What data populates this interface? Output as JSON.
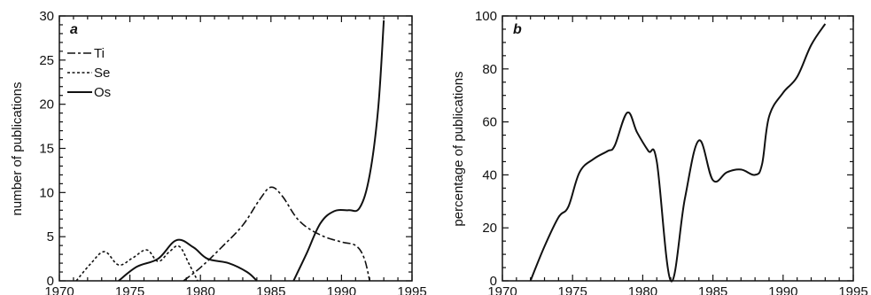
{
  "chart_data": [
    {
      "panel": "a",
      "type": "line",
      "xlabel": "",
      "ylabel": "number of publications",
      "xlim": [
        1970,
        1995
      ],
      "ylim": [
        0,
        30
      ],
      "xticks": [
        1970,
        1975,
        1980,
        1985,
        1990,
        1995
      ],
      "yticks": [
        0,
        5,
        10,
        15,
        20,
        25,
        30
      ],
      "grid": false,
      "legend_position": "top-left",
      "series": [
        {
          "name": "Ti",
          "style": "long-dash",
          "color": "#111111",
          "x": [
            1978.8,
            1980,
            1981.5,
            1983,
            1984.2,
            1985,
            1985.8,
            1987,
            1988.5,
            1990,
            1991,
            1991.6,
            1992
          ],
          "y": [
            0,
            1.5,
            3.8,
            6.3,
            9.2,
            10.6,
            9.6,
            6.8,
            5.2,
            4.4,
            4.0,
            2.6,
            0
          ]
        },
        {
          "name": "Se",
          "style": "short-dash",
          "color": "#111111",
          "x": [
            1971.2,
            1972.2,
            1973.2,
            1974.2,
            1975.2,
            1976.2,
            1977,
            1977.8,
            1978.5,
            1979.2,
            1979.8
          ],
          "y": [
            0,
            1.9,
            3.3,
            1.8,
            2.6,
            3.5,
            2.2,
            3.3,
            3.9,
            1.9,
            0
          ]
        },
        {
          "name": "Os",
          "style": "solid",
          "color": "#111111",
          "x": [
            1974.2,
            1975.5,
            1977,
            1978.3,
            1979.5,
            1980.5,
            1982,
            1983.3,
            1984,
            null,
            1986.6,
            1987.5,
            1988.5,
            1989.5,
            1990.5,
            1991.3,
            1992,
            1992.6,
            1993
          ],
          "y": [
            0,
            1.6,
            2.5,
            4.6,
            3.8,
            2.5,
            2.0,
            1.0,
            0,
            null,
            0,
            3.0,
            6.5,
            7.9,
            8.0,
            8.3,
            12.0,
            19.5,
            29.5
          ]
        }
      ]
    },
    {
      "panel": "b",
      "type": "line",
      "xlabel": "",
      "ylabel": "percentage of publications",
      "xlim": [
        1970,
        1995
      ],
      "ylim": [
        0,
        100
      ],
      "xticks": [
        1970,
        1975,
        1980,
        1985,
        1990,
        1995
      ],
      "yticks": [
        0,
        20,
        40,
        60,
        80,
        100
      ],
      "grid": false,
      "series": [
        {
          "name": "",
          "style": "solid",
          "color": "#111111",
          "x": [
            1972,
            1973,
            1974,
            1974.7,
            1975.5,
            1976.5,
            1977.5,
            1978,
            1978.9,
            1979.6,
            1980.4,
            1981,
            1982,
            1983,
            1984,
            1985,
            1986,
            1987,
            1988,
            1988.5,
            1989,
            1990,
            1991,
            1992,
            1993
          ],
          "y": [
            0,
            13,
            24,
            28,
            41,
            46,
            49,
            51,
            63.5,
            56,
            49,
            45,
            0,
            31,
            53,
            38,
            41,
            42,
            40,
            44,
            62,
            71,
            77,
            89,
            97
          ]
        }
      ]
    }
  ],
  "icons": {
    "legend_line_samples": [
      "long-dash-line-icon",
      "short-dash-line-icon",
      "solid-line-icon"
    ]
  }
}
